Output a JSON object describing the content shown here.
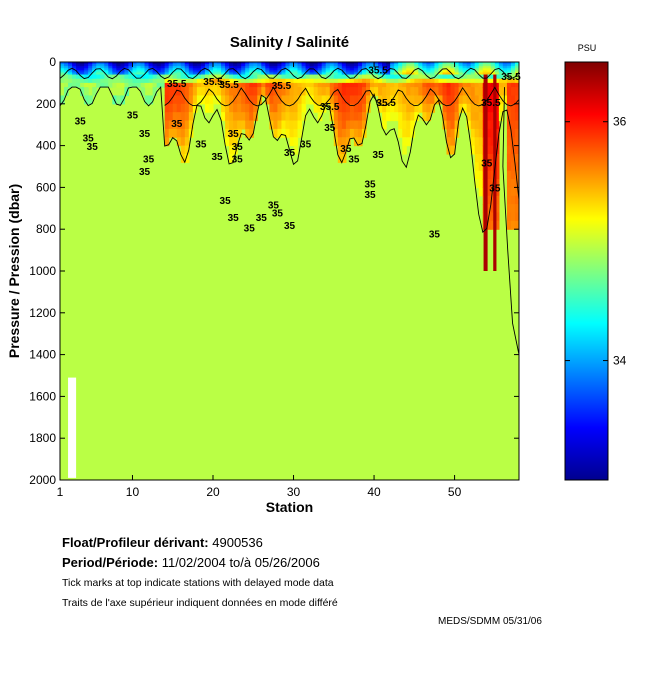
{
  "chart_data": {
    "type": "heatmap",
    "title": "Salinity / Salinité",
    "xlabel": "Station",
    "ylabel": "Pressure / Pression (dbar)",
    "xlim": [
      1,
      58
    ],
    "ylim": [
      0,
      2000
    ],
    "y_reversed": true,
    "xticks": [
      1,
      10,
      20,
      30,
      40,
      50
    ],
    "yticks": [
      0,
      200,
      400,
      600,
      800,
      1000,
      1200,
      1400,
      1600,
      1800,
      2000
    ],
    "colorbar": {
      "unit": "PSU",
      "range": [
        33.0,
        36.5
      ],
      "ticks": [
        34,
        36
      ],
      "colormap": "jet"
    },
    "contour_levels": [
      35,
      35.5
    ],
    "contour_labels": [
      {
        "text": "35",
        "station": 3.5,
        "pressure": 300
      },
      {
        "text": "35",
        "station": 4.5,
        "pressure": 380
      },
      {
        "text": "35",
        "station": 5.0,
        "pressure": 420
      },
      {
        "text": "35",
        "station": 10.0,
        "pressure": 270
      },
      {
        "text": "35",
        "station": 11.5,
        "pressure": 360
      },
      {
        "text": "35",
        "station": 12.0,
        "pressure": 480
      },
      {
        "text": "35",
        "station": 11.5,
        "pressure": 540
      },
      {
        "text": "35",
        "station": 15.5,
        "pressure": 310
      },
      {
        "text": "35",
        "station": 18.5,
        "pressure": 410
      },
      {
        "text": "35",
        "station": 20.5,
        "pressure": 470
      },
      {
        "text": "35",
        "station": 22.5,
        "pressure": 360
      },
      {
        "text": "35",
        "station": 23.0,
        "pressure": 420
      },
      {
        "text": "35",
        "station": 23.0,
        "pressure": 480
      },
      {
        "text": "35",
        "station": 21.5,
        "pressure": 680
      },
      {
        "text": "35",
        "station": 22.5,
        "pressure": 760
      },
      {
        "text": "35",
        "station": 24.5,
        "pressure": 810
      },
      {
        "text": "35",
        "station": 26.0,
        "pressure": 760
      },
      {
        "text": "35",
        "station": 27.5,
        "pressure": 700
      },
      {
        "text": "35",
        "station": 28.0,
        "pressure": 740
      },
      {
        "text": "35",
        "station": 29.5,
        "pressure": 800
      },
      {
        "text": "35",
        "station": 29.5,
        "pressure": 450
      },
      {
        "text": "35",
        "station": 31.5,
        "pressure": 410
      },
      {
        "text": "35",
        "station": 34.5,
        "pressure": 330
      },
      {
        "text": "35",
        "station": 36.5,
        "pressure": 430
      },
      {
        "text": "35",
        "station": 37.5,
        "pressure": 480
      },
      {
        "text": "35",
        "station": 40.5,
        "pressure": 460
      },
      {
        "text": "35",
        "station": 39.5,
        "pressure": 600
      },
      {
        "text": "35",
        "station": 39.5,
        "pressure": 650
      },
      {
        "text": "35",
        "station": 47.5,
        "pressure": 840
      },
      {
        "text": "35",
        "station": 54.0,
        "pressure": 500
      },
      {
        "text": "35",
        "station": 55.0,
        "pressure": 620
      },
      {
        "text": "35.5",
        "station": 15.5,
        "pressure": 120
      },
      {
        "text": "35.5",
        "station": 20.0,
        "pressure": 110
      },
      {
        "text": "35.5",
        "station": 22.0,
        "pressure": 125
      },
      {
        "text": "35.5",
        "station": 28.5,
        "pressure": 130
      },
      {
        "text": "35.5",
        "station": 34.5,
        "pressure": 230
      },
      {
        "text": "35.5",
        "station": 40.5,
        "pressure": 55
      },
      {
        "text": "35.5",
        "station": 41.5,
        "pressure": 210
      },
      {
        "text": "35.5",
        "station": 54.5,
        "pressure": 210
      },
      {
        "text": "35.5",
        "station": 57.0,
        "pressure": 85
      }
    ],
    "legend": "colorbar-right",
    "grid": false
  },
  "info": {
    "float_label": "Float/Profileur dérivant:",
    "float_id": "4900536",
    "period_label": "Period/Période:",
    "period_start": "11/02/2004",
    "period_to": "to/à",
    "period_end": "05/26/2006",
    "note_en": "Tick marks at top indicate stations with delayed mode data",
    "note_fr": "Traits de l'axe supérieur indiquent données en mode différé",
    "stamp": "MEDS/SDMM  05/31/06"
  }
}
